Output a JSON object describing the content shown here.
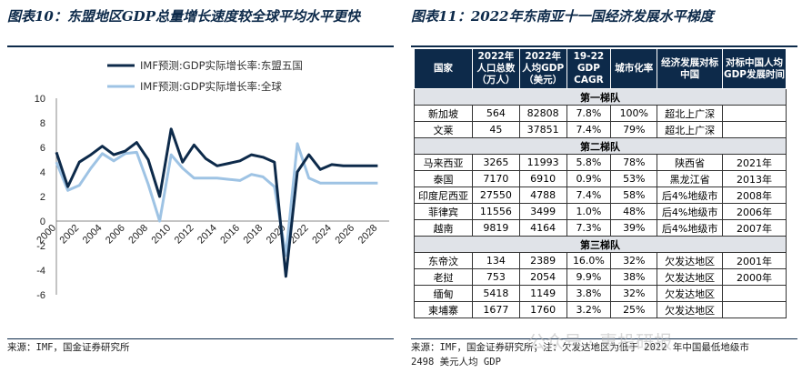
{
  "left": {
    "title": "图表10：东盟地区GDP总量增长速度较全球平均水平更快",
    "source": "来源：IMF，国金证券研究所"
  },
  "right": {
    "title": "图表11：2022年东南亚十一国经济发展水平梯度",
    "source_line1": "来源：IMF，国金证券研究所；注：欠发达地区为低于 2022 年中国最低地级市",
    "source_line2": "2498 美元人均 GDP"
  },
  "watermark": "公众号 · 惠投研报",
  "colors": {
    "asean": "#0d2a4a",
    "global": "#9ec3e4",
    "header": "#0d2a4a"
  },
  "chart_data": {
    "type": "line",
    "x": [
      2000,
      2001,
      2002,
      2003,
      2004,
      2005,
      2006,
      2007,
      2008,
      2009,
      2010,
      2011,
      2012,
      2013,
      2014,
      2015,
      2016,
      2017,
      2018,
      2019,
      2020,
      2021,
      2022,
      2023,
      2024,
      2025,
      2026,
      2027,
      2028
    ],
    "series": [
      {
        "name": "IMF预测:GDP实际增长率:东盟五国",
        "color": "#0d2a4a",
        "values": [
          5.6,
          2.8,
          4.8,
          5.4,
          6.1,
          5.4,
          5.7,
          6.4,
          5.0,
          2.0,
          7.5,
          4.8,
          6.2,
          5.1,
          4.5,
          4.7,
          4.9,
          5.4,
          5.2,
          4.8,
          -4.5,
          4.0,
          5.4,
          4.2,
          4.6,
          4.5,
          4.5,
          4.5,
          4.5
        ]
      },
      {
        "name": "IMF预测:GDP实际增长率:全球",
        "color": "#9ec3e4",
        "values": [
          4.8,
          2.5,
          2.9,
          4.3,
          5.5,
          4.9,
          5.5,
          5.6,
          3.0,
          0.0,
          5.4,
          4.3,
          3.5,
          3.5,
          3.5,
          3.4,
          3.3,
          3.8,
          3.6,
          2.8,
          -2.8,
          6.3,
          3.5,
          3.1,
          3.1,
          3.1,
          3.1,
          3.1,
          3.1
        ]
      }
    ],
    "xticks": [
      "2000",
      "2002",
      "2004",
      "2006",
      "2008",
      "2010",
      "2012",
      "2014",
      "2016",
      "2018",
      "2020",
      "2022",
      "2024",
      "2026",
      "2028"
    ],
    "yticks": [
      "-6",
      "-4",
      "-2",
      "0",
      "2",
      "4",
      "6",
      "8",
      "10"
    ],
    "ylim": [
      -6,
      10
    ],
    "xlim": [
      2000,
      2029
    ],
    "grid": false,
    "legend": "top"
  },
  "table": {
    "headers": [
      "国家",
      "2022年人口总数（万人）",
      "2022年人均GDP（美元）",
      "19-22 GDP CAGR",
      "城市化率",
      "经济发展对标中国",
      "对标中国人均GDP发展时间"
    ],
    "groups": [
      {
        "tier": "第一梯队",
        "rows": [
          [
            "新加坡",
            "564",
            "82808",
            "7.8%",
            "100%",
            "超北上广深",
            ""
          ],
          [
            "文莱",
            "45",
            "37851",
            "7.4%",
            "79%",
            "超北上广深",
            ""
          ]
        ]
      },
      {
        "tier": "第二梯队",
        "rows": [
          [
            "马来西亚",
            "3265",
            "11993",
            "5.8%",
            "78%",
            "陕西省",
            "2021年"
          ],
          [
            "泰国",
            "7170",
            "6910",
            "0.9%",
            "53%",
            "黑龙江省",
            "2013年"
          ],
          [
            "印度尼西亚",
            "27550",
            "4788",
            "7.4%",
            "58%",
            "后4%地级市",
            "2008年"
          ],
          [
            "菲律宾",
            "11556",
            "3499",
            "1.0%",
            "48%",
            "后4%地级市",
            "2006年"
          ],
          [
            "越南",
            "9819",
            "4164",
            "7.3%",
            "39%",
            "后4%地级市",
            "2007年"
          ]
        ]
      },
      {
        "tier": "第三梯队",
        "rows": [
          [
            "东帝汶",
            "134",
            "2389",
            "16.0%",
            "32%",
            "欠发达地区",
            "2001年"
          ],
          [
            "老挝",
            "753",
            "2054",
            "9.9%",
            "38%",
            "欠发达地区",
            "2000年"
          ],
          [
            "缅甸",
            "5418",
            "1149",
            "3.8%",
            "32%",
            "欠发达地区",
            ""
          ],
          [
            "柬埔寨",
            "1677",
            "1760",
            "3.2%",
            "25%",
            "欠发达地区",
            ""
          ]
        ]
      }
    ]
  }
}
